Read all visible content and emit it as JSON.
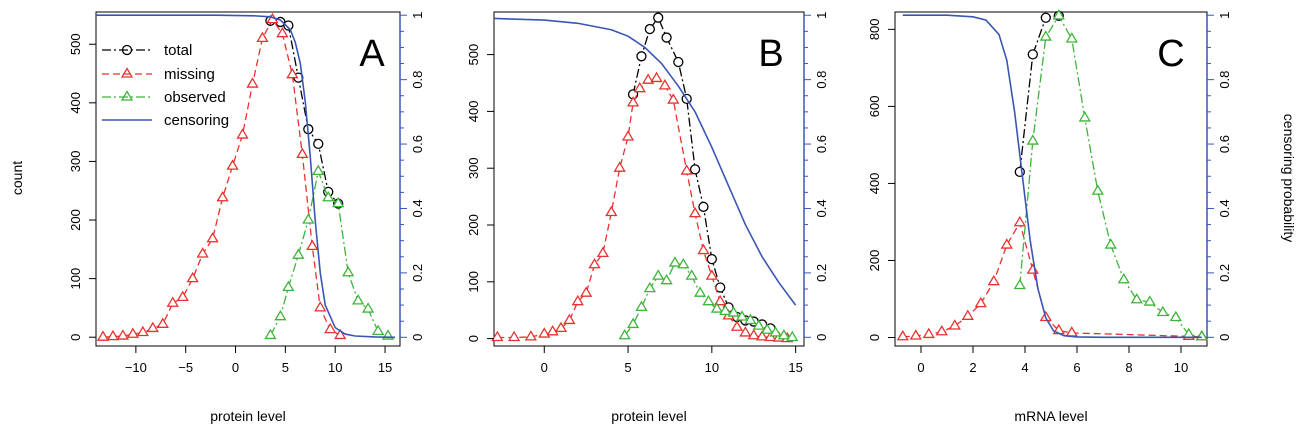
{
  "figure": {
    "ylabel_left": "count",
    "ylabel_right": "censoring probability"
  },
  "colors": {
    "total": "#000000",
    "missing": "#e8322f",
    "observed": "#3fb43a",
    "censoring": "#3a56b5"
  },
  "legend": {
    "placement": "top-left of panel A",
    "items": [
      {
        "key": "total",
        "label": "total",
        "marker": "circle"
      },
      {
        "key": "missing",
        "label": "missing",
        "marker": "triangle"
      },
      {
        "key": "observed",
        "label": "observed",
        "marker": "triangle"
      },
      {
        "key": "censoring",
        "label": "censoring",
        "marker": "line"
      }
    ]
  },
  "chart_data": [
    {
      "type": "line",
      "panel": "A",
      "xlabel": "protein level",
      "ylabel": "count",
      "y2label": "censoring probability",
      "xlim": [
        -14,
        16.5
      ],
      "ylim": [
        -15,
        555
      ],
      "y2lim": [
        -0.027,
        1.01
      ],
      "xticks": [
        -10,
        -5,
        0,
        5,
        10,
        15
      ],
      "yticks": [
        0,
        100,
        200,
        300,
        400,
        500
      ],
      "y2ticks": [
        0,
        0.2,
        0.4,
        0.6,
        0.8,
        1
      ],
      "grid": false,
      "series": [
        {
          "key": "total",
          "x": [
            3.5,
            4.5,
            5.3,
            6.3,
            7.3,
            8.3,
            9.3,
            10.3
          ],
          "y": [
            540,
            538,
            532,
            443,
            355,
            330,
            248,
            228
          ]
        },
        {
          "key": "missing",
          "x": [
            -13.3,
            -12.3,
            -11.3,
            -10.3,
            -9.3,
            -8.3,
            -7.3,
            -6.3,
            -5.3,
            -4.3,
            -3.3,
            -2.3,
            -1.3,
            -0.3,
            0.7,
            1.7,
            2.7,
            3.7,
            4.7,
            5.7,
            6.7,
            7.7,
            8.5,
            9.5,
            10.5
          ],
          "y": [
            0,
            1,
            2,
            5,
            8,
            15,
            22,
            58,
            68,
            100,
            142,
            168,
            238,
            292,
            345,
            432,
            510,
            542,
            518,
            448,
            312,
            155,
            50,
            13,
            3
          ]
        },
        {
          "key": "observed",
          "x": [
            3.5,
            4.5,
            5.3,
            6.3,
            7.3,
            8.3,
            9.3,
            10.3,
            11.3,
            12.3,
            13.3,
            14.3,
            15.3
          ],
          "y": [
            3,
            35,
            85,
            140,
            200,
            283,
            238,
            228,
            110,
            62,
            48,
            10,
            2
          ]
        },
        {
          "key": "censoring",
          "x": [
            -14,
            -10,
            -6,
            -2,
            2,
            3.5,
            4.5,
            5.5,
            6,
            6.5,
            7,
            7.5,
            8,
            8.5,
            9,
            10,
            11,
            12,
            14,
            16
          ],
          "y": [
            1,
            1,
            1,
            1,
            0.998,
            0.995,
            0.985,
            0.955,
            0.915,
            0.85,
            0.73,
            0.56,
            0.36,
            0.2,
            0.1,
            0.03,
            0.01,
            0.004,
            0.001,
            0
          ]
        }
      ]
    },
    {
      "type": "line",
      "panel": "B",
      "xlabel": "protein level",
      "xlim": [
        -3,
        15.5
      ],
      "ylim": [
        -13,
        575
      ],
      "y2lim": [
        -0.027,
        1.01
      ],
      "xticks": [
        0,
        5,
        10,
        15
      ],
      "yticks": [
        0,
        100,
        200,
        300,
        400,
        500
      ],
      "y2ticks": [
        0,
        0.2,
        0.4,
        0.6,
        0.8,
        1
      ],
      "grid": false,
      "series": [
        {
          "key": "total",
          "x": [
            5.3,
            5.8,
            6.3,
            6.8,
            7.3,
            8,
            8.5,
            9,
            9.5,
            10,
            10.5,
            11,
            11.5,
            12,
            12.5,
            13,
            13.5
          ],
          "y": [
            430,
            497,
            545,
            565,
            530,
            487,
            422,
            298,
            232,
            140,
            90,
            55,
            38,
            32,
            30,
            25,
            18
          ]
        },
        {
          "key": "missing",
          "x": [
            -2.8,
            -1.8,
            -0.8,
            0,
            0.5,
            1,
            1.5,
            2,
            2.5,
            3,
            3.5,
            4,
            4.5,
            5,
            5.3,
            5.7,
            6.2,
            6.7,
            7.2,
            7.7,
            8.5,
            9,
            9.5,
            10,
            10.5,
            11,
            11.5,
            12,
            12.5,
            13,
            13.5,
            14,
            14.5
          ],
          "y": [
            2,
            2,
            3,
            8,
            12,
            18,
            32,
            65,
            80,
            130,
            150,
            222,
            300,
            355,
            415,
            440,
            455,
            458,
            445,
            420,
            295,
            220,
            155,
            110,
            65,
            40,
            20,
            10,
            5,
            3,
            2,
            1,
            0
          ]
        },
        {
          "key": "observed",
          "x": [
            4.8,
            5.3,
            5.8,
            6.3,
            6.8,
            7.3,
            7.8,
            8.3,
            8.8,
            9.3,
            9.8,
            10.3,
            10.8,
            11.3,
            11.8,
            12.3,
            12.8,
            13.3,
            13.8,
            14.3,
            14.8
          ],
          "y": [
            5,
            25,
            55,
            88,
            110,
            102,
            133,
            130,
            110,
            80,
            65,
            52,
            48,
            45,
            38,
            32,
            22,
            15,
            10,
            5,
            2
          ]
        },
        {
          "key": "censoring",
          "x": [
            -3,
            0,
            2,
            4,
            5,
            6,
            7,
            8,
            9,
            10,
            11,
            12,
            13,
            14,
            15
          ],
          "y": [
            0.99,
            0.985,
            0.975,
            0.955,
            0.935,
            0.9,
            0.85,
            0.78,
            0.7,
            0.59,
            0.47,
            0.35,
            0.25,
            0.17,
            0.1
          ]
        }
      ]
    },
    {
      "type": "line",
      "panel": "C",
      "xlabel": "mRNA level",
      "xlim": [
        -1,
        11
      ],
      "ylim": [
        -22,
        845
      ],
      "y2lim": [
        -0.027,
        1.01
      ],
      "xticks": [
        0,
        2,
        4,
        6,
        8,
        10
      ],
      "yticks": [
        0,
        200,
        400,
        600,
        800
      ],
      "y2ticks": [
        0,
        0.2,
        0.4,
        0.6,
        0.8,
        1
      ],
      "grid": false,
      "series": [
        {
          "key": "total",
          "x": [
            3.8,
            4.3,
            4.8,
            5.3
          ],
          "y": [
            430,
            735,
            830,
            835
          ]
        },
        {
          "key": "missing",
          "x": [
            -0.7,
            -0.2,
            0.3,
            0.8,
            1.3,
            1.8,
            2.3,
            2.8,
            3.3,
            3.8,
            4.3,
            4.8,
            5.3,
            5.8,
            10.3,
            10.8
          ],
          "y": [
            2,
            4,
            8,
            15,
            30,
            55,
            88,
            145,
            240,
            298,
            175,
            52,
            18,
            12,
            3,
            2
          ]
        },
        {
          "key": "observed",
          "x": [
            3.8,
            4.3,
            4.8,
            5.3,
            5.8,
            6.3,
            6.8,
            7.3,
            7.8,
            8.3,
            8.8,
            9.3,
            9.8,
            10.3,
            10.8
          ],
          "y": [
            135,
            510,
            780,
            835,
            775,
            570,
            380,
            240,
            150,
            98,
            92,
            65,
            52,
            8,
            2
          ]
        },
        {
          "key": "censoring",
          "x": [
            -0.7,
            1,
            2,
            2.5,
            3,
            3.3,
            3.6,
            3.9,
            4.2,
            4.5,
            4.8,
            5.1,
            5.5,
            6,
            7,
            9,
            10.8
          ],
          "y": [
            1,
            1,
            0.995,
            0.985,
            0.94,
            0.86,
            0.7,
            0.5,
            0.3,
            0.15,
            0.06,
            0.02,
            0.005,
            0.001,
            0,
            0,
            0
          ]
        }
      ]
    }
  ]
}
